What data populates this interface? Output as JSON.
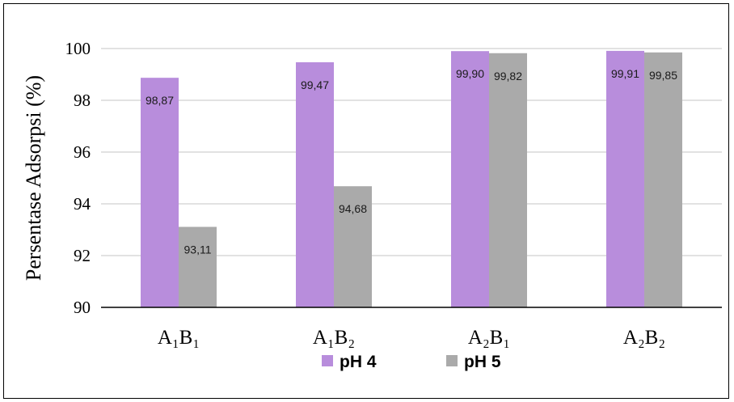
{
  "chart_data": {
    "type": "bar",
    "categories": [
      "A₁B₁",
      "A₁B₂",
      "A₂B₁",
      "A₂B₂"
    ],
    "series": [
      {
        "name": "pH 4",
        "color": "#b88ddc",
        "values": [
          98.87,
          99.47,
          99.9,
          99.91
        ],
        "labels": [
          "98,87",
          "99,47",
          "99,90",
          "99,91"
        ]
      },
      {
        "name": "pH 5",
        "color": "#aaaaaa",
        "values": [
          93.11,
          94.68,
          99.82,
          99.85
        ],
        "labels": [
          "93,11",
          "94,68",
          "99,82",
          "99,85"
        ]
      }
    ],
    "ylabel": "Persentase Adsorpsi (%)",
    "xlabel": "",
    "ylim": [
      90,
      100
    ],
    "yticks": [
      90,
      92,
      94,
      96,
      98,
      100
    ],
    "grid": true,
    "legend_position": "bottom"
  }
}
